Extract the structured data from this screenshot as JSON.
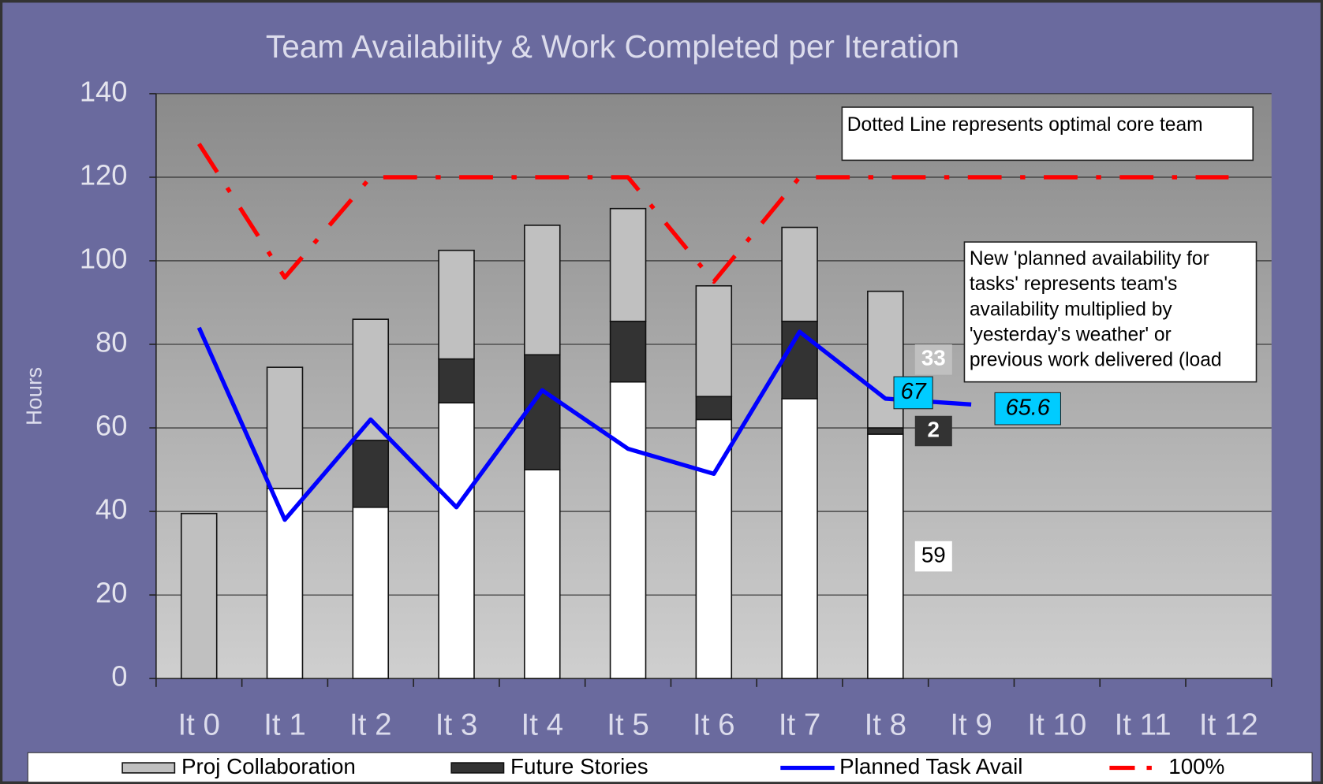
{
  "chart_data": {
    "type": "bar",
    "title": "Team Availability & Work Completed per Iteration",
    "y_label": "Hours",
    "categories": [
      "It 0",
      "It 1",
      "It 2",
      "It 3",
      "It 4",
      "It 5",
      "It 6",
      "It 7",
      "It 8",
      "It 9",
      "It 10",
      "It 11",
      "It 12"
    ],
    "ylim": [
      0,
      140
    ],
    "yticks": [
      0,
      20,
      40,
      60,
      80,
      100,
      120,
      140
    ],
    "grid": true,
    "stacked": true,
    "series": [
      {
        "type": "bar",
        "color": "#ffffff",
        "values": [
          0,
          45.5,
          41,
          66,
          50,
          71,
          62,
          67,
          58.5,
          null,
          null,
          null,
          null
        ],
        "value_labels": [
          null,
          null,
          null,
          null,
          null,
          null,
          null,
          null,
          "59",
          null,
          null,
          null,
          null
        ]
      },
      {
        "type": "bar",
        "name": "Future Stories",
        "color": "#333333",
        "values": [
          0,
          0,
          16,
          10.5,
          27.5,
          14.5,
          5.5,
          18.5,
          1.5,
          null,
          null,
          null,
          null
        ],
        "value_labels": [
          null,
          null,
          null,
          null,
          null,
          null,
          null,
          null,
          "2",
          null,
          null,
          null,
          null
        ]
      },
      {
        "type": "bar",
        "name": "Proj Collaboration",
        "color": "#c0c0c0",
        "values": [
          39.5,
          29,
          29,
          26,
          31,
          27,
          26.5,
          22.5,
          32.7,
          null,
          null,
          null,
          null
        ],
        "value_labels": [
          null,
          null,
          null,
          null,
          null,
          null,
          null,
          null,
          "33",
          null,
          null,
          null,
          null
        ]
      },
      {
        "type": "line",
        "name": "Planned Task Avail",
        "color": "#0000ff",
        "values": [
          84,
          38,
          62,
          41,
          69,
          55,
          49,
          83,
          67,
          65.6,
          null,
          null,
          null
        ],
        "value_labels": [
          null,
          null,
          null,
          null,
          null,
          null,
          null,
          null,
          "67",
          "65.6",
          null,
          null,
          null
        ]
      },
      {
        "type": "line",
        "name": "100%",
        "color": "#ff0000",
        "dash": "dashdot",
        "values": [
          128,
          96,
          120,
          120,
          120,
          120,
          95,
          120,
          120,
          120,
          120,
          120,
          120
        ]
      }
    ],
    "annotations": [
      {
        "lines": [
          "Dotted Line represents optimal core team"
        ]
      },
      {
        "lines": [
          "New 'planned availability for",
          "tasks' represents team's",
          "availability multiplied by",
          "'yesterday's weather' or",
          "previous work delivered (load"
        ]
      }
    ],
    "legend": "bottom"
  }
}
